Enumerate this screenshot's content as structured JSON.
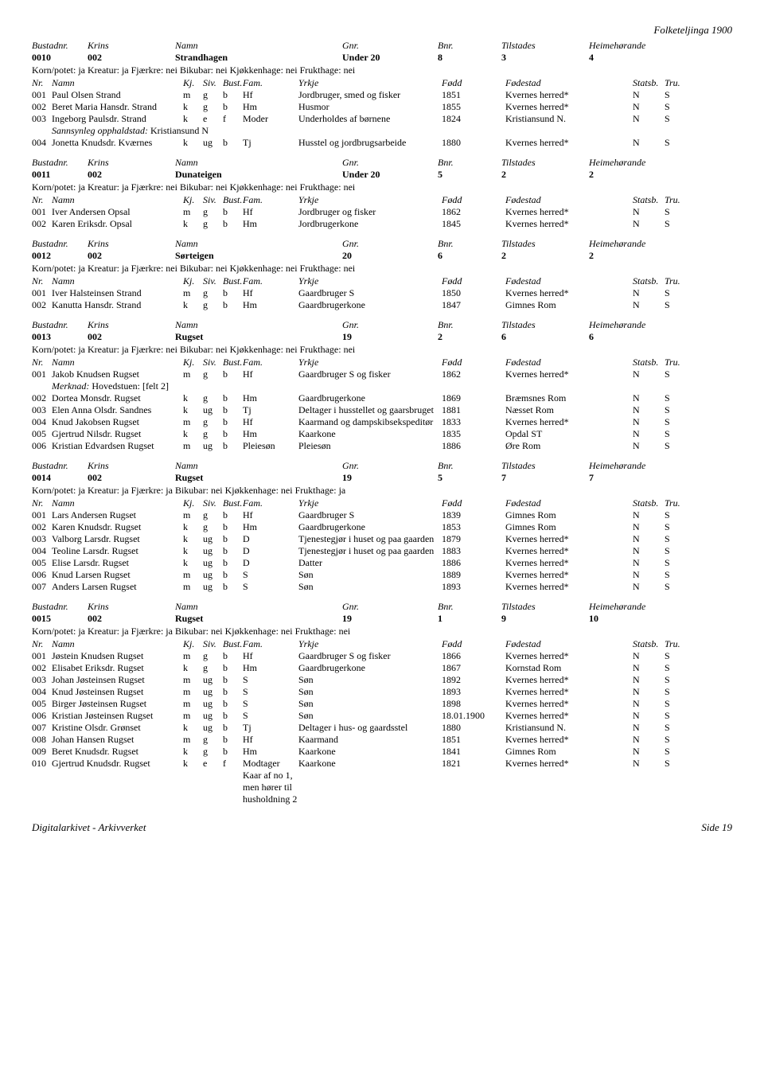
{
  "page_title": "Folketeljinga 1900",
  "footer_left": "Digitalarkivet - Arkivverket",
  "footer_right": "Side 19",
  "labels": {
    "bustnr": "Bustadnr.",
    "krins": "Krins",
    "namn": "Namn",
    "gnr": "Gnr.",
    "bnr": "Bnr.",
    "tilstades": "Tilstades",
    "heim": "Heimehørande",
    "nr": "Nr.",
    "pnamn": "Namn",
    "kj": "Kj.",
    "siv": "Siv.",
    "bust": "Bust.",
    "fam": "Fam.",
    "yrkje": "Yrkje",
    "fodd": "Fødd",
    "fodestad": "Fødestad",
    "statsb": "Statsb.",
    "tru": "Tru.",
    "merknad": "Merknad:",
    "sann": "Sannsynleg opphaldstad:"
  },
  "households": [
    {
      "bustnr": "0010",
      "krins": "002",
      "namn": "Strandhagen",
      "gnr": "Under 20",
      "bnr": "8",
      "tilstades": "3",
      "heim": "4",
      "korn": "Korn/potet: ja Kreatur: ja Fjærkre: nei Bikubar: nei Kjøkkenhage: nei Frukthage: nei",
      "persons": [
        {
          "nr": "001",
          "namn": "Paul Olsen Strand",
          "kj": "m",
          "siv": "g",
          "bust": "b",
          "fam": "Hf",
          "yrkje": "Jordbruger, smed og fisker",
          "fodd": "1851",
          "fodestad": "Kvernes herred*",
          "statsb": "N",
          "tru": "S"
        },
        {
          "nr": "002",
          "namn": "Beret Maria Hansdr. Strand",
          "kj": "k",
          "siv": "g",
          "bust": "b",
          "fam": "Hm",
          "yrkje": "Husmor",
          "fodd": "1855",
          "fodestad": "Kvernes herred*",
          "statsb": "N",
          "tru": "S"
        },
        {
          "nr": "003",
          "namn": "Ingeborg Paulsdr. Strand",
          "kj": "k",
          "siv": "e",
          "bust": "f",
          "fam": "Moder",
          "yrkje": "Underholdes af børnene",
          "fodd": "1824",
          "fodestad": "Kristiansund N.",
          "statsb": "N",
          "tru": "S",
          "sann": "Kristiansund N"
        },
        {
          "nr": "004",
          "namn": "Jonetta Knudsdr. Kværnes",
          "kj": "k",
          "siv": "ug",
          "bust": "b",
          "fam": "Tj",
          "yrkje": "Husstel og jordbrugsarbeide",
          "fodd": "1880",
          "fodestad": "Kvernes herred*",
          "statsb": "N",
          "tru": "S"
        }
      ]
    },
    {
      "bustnr": "0011",
      "krins": "002",
      "namn": "Dunateigen",
      "gnr": "Under 20",
      "bnr": "5",
      "tilstades": "2",
      "heim": "2",
      "korn": "Korn/potet: ja Kreatur: ja Fjærkre: nei Bikubar: nei Kjøkkenhage: nei Frukthage: nei",
      "persons": [
        {
          "nr": "001",
          "namn": "Iver Andersen Opsal",
          "kj": "m",
          "siv": "g",
          "bust": "b",
          "fam": "Hf",
          "yrkje": "Jordbruger og fisker",
          "fodd": "1862",
          "fodestad": "Kvernes herred*",
          "statsb": "N",
          "tru": "S"
        },
        {
          "nr": "002",
          "namn": "Karen Eriksdr. Opsal",
          "kj": "k",
          "siv": "g",
          "bust": "b",
          "fam": "Hm",
          "yrkje": "Jordbrugerkone",
          "fodd": "1845",
          "fodestad": "Kvernes herred*",
          "statsb": "N",
          "tru": "S"
        }
      ]
    },
    {
      "bustnr": "0012",
      "krins": "002",
      "namn": "Sørteigen",
      "gnr": "20",
      "bnr": "6",
      "tilstades": "2",
      "heim": "2",
      "korn": "Korn/potet: ja Kreatur: ja Fjærkre: nei Bikubar: nei Kjøkkenhage: nei Frukthage: nei",
      "persons": [
        {
          "nr": "001",
          "namn": "Iver Halsteinsen Strand",
          "kj": "m",
          "siv": "g",
          "bust": "b",
          "fam": "Hf",
          "yrkje": "Gaardbruger S",
          "fodd": "1850",
          "fodestad": "Kvernes herred*",
          "statsb": "N",
          "tru": "S"
        },
        {
          "nr": "002",
          "namn": "Kanutta Hansdr. Strand",
          "kj": "k",
          "siv": "g",
          "bust": "b",
          "fam": "Hm",
          "yrkje": "Gaardbrugerkone",
          "fodd": "1847",
          "fodestad": "Gimnes Rom",
          "statsb": "N",
          "tru": "S"
        }
      ]
    },
    {
      "bustnr": "0013",
      "krins": "002",
      "namn": "Rugset",
      "gnr": "19",
      "bnr": "2",
      "tilstades": "6",
      "heim": "6",
      "korn": "Korn/potet: ja Kreatur: ja Fjærkre: nei Bikubar: nei Kjøkkenhage: nei Frukthage: nei",
      "persons": [
        {
          "nr": "001",
          "namn": "Jakob Knudsen Rugset",
          "kj": "m",
          "siv": "g",
          "bust": "b",
          "fam": "Hf",
          "yrkje": "Gaardbruger S og fisker",
          "fodd": "1862",
          "fodestad": "Kvernes herred*",
          "statsb": "N",
          "tru": "S",
          "merknad": "Hovedstuen: [felt 2]"
        },
        {
          "nr": "002",
          "namn": "Dortea Monsdr. Rugset",
          "kj": "k",
          "siv": "g",
          "bust": "b",
          "fam": "Hm",
          "yrkje": "Gaardbrugerkone",
          "fodd": "1869",
          "fodestad": "Bræmsnes Rom",
          "statsb": "N",
          "tru": "S"
        },
        {
          "nr": "003",
          "namn": "Elen Anna Olsdr. Sandnes",
          "kj": "k",
          "siv": "ug",
          "bust": "b",
          "fam": "Tj",
          "yrkje": "Deltager i husstellet og gaarsbruget",
          "fodd": "1881",
          "fodestad": "Næsset Rom",
          "statsb": "N",
          "tru": "S"
        },
        {
          "nr": "004",
          "namn": "Knud Jakobsen Rugset",
          "kj": "m",
          "siv": "g",
          "bust": "b",
          "fam": "Hf",
          "yrkje": "Kaarmand og dampskibsekspeditør",
          "fodd": "1833",
          "fodestad": "Kvernes herred*",
          "statsb": "N",
          "tru": "S"
        },
        {
          "nr": "005",
          "namn": "Gjertrud Nilsdr. Rugset",
          "kj": "k",
          "siv": "g",
          "bust": "b",
          "fam": "Hm",
          "yrkje": "Kaarkone",
          "fodd": "1835",
          "fodestad": "Opdal ST",
          "statsb": "N",
          "tru": "S"
        },
        {
          "nr": "006",
          "namn": "Kristian Edvardsen Rugset",
          "kj": "m",
          "siv": "ug",
          "bust": "b",
          "fam": "Pleiesøn",
          "yrkje": "Pleiesøn",
          "fodd": "1886",
          "fodestad": "Øre Rom",
          "statsb": "N",
          "tru": "S"
        }
      ]
    },
    {
      "bustnr": "0014",
      "krins": "002",
      "namn": "Rugset",
      "gnr": "19",
      "bnr": "5",
      "tilstades": "7",
      "heim": "7",
      "korn": "Korn/potet: ja Kreatur: ja Fjærkre: ja Bikubar: nei Kjøkkenhage: nei Frukthage: ja",
      "persons": [
        {
          "nr": "001",
          "namn": "Lars Andersen Rugset",
          "kj": "m",
          "siv": "g",
          "bust": "b",
          "fam": "Hf",
          "yrkje": "Gaardbruger S",
          "fodd": "1839",
          "fodestad": "Gimnes Rom",
          "statsb": "N",
          "tru": "S"
        },
        {
          "nr": "002",
          "namn": "Karen Knudsdr. Rugset",
          "kj": "k",
          "siv": "g",
          "bust": "b",
          "fam": "Hm",
          "yrkje": "Gaardbrugerkone",
          "fodd": "1853",
          "fodestad": "Gimnes Rom",
          "statsb": "N",
          "tru": "S"
        },
        {
          "nr": "003",
          "namn": "Valborg Larsdr. Rugset",
          "kj": "k",
          "siv": "ug",
          "bust": "b",
          "fam": "D",
          "yrkje": "Tjenestegjør i huset og paa gaarden",
          "fodd": "1879",
          "fodestad": "Kvernes herred*",
          "statsb": "N",
          "tru": "S"
        },
        {
          "nr": "004",
          "namn": "Teoline Larsdr. Rugset",
          "kj": "k",
          "siv": "ug",
          "bust": "b",
          "fam": "D",
          "yrkje": "Tjenestegjør i huset og paa gaarden",
          "fodd": "1883",
          "fodestad": "Kvernes herred*",
          "statsb": "N",
          "tru": "S"
        },
        {
          "nr": "005",
          "namn": "Elise Larsdr. Rugset",
          "kj": "k",
          "siv": "ug",
          "bust": "b",
          "fam": "D",
          "yrkje": "Datter",
          "fodd": "1886",
          "fodestad": "Kvernes herred*",
          "statsb": "N",
          "tru": "S"
        },
        {
          "nr": "006",
          "namn": "Knud Larsen Rugset",
          "kj": "m",
          "siv": "ug",
          "bust": "b",
          "fam": "S",
          "yrkje": "Søn",
          "fodd": "1889",
          "fodestad": "Kvernes herred*",
          "statsb": "N",
          "tru": "S"
        },
        {
          "nr": "007",
          "namn": "Anders Larsen Rugset",
          "kj": "m",
          "siv": "ug",
          "bust": "b",
          "fam": "S",
          "yrkje": "Søn",
          "fodd": "1893",
          "fodestad": "Kvernes herred*",
          "statsb": "N",
          "tru": "S"
        }
      ]
    },
    {
      "bustnr": "0015",
      "krins": "002",
      "namn": "Rugset",
      "gnr": "19",
      "bnr": "1",
      "tilstades": "9",
      "heim": "10",
      "korn": "Korn/potet: ja Kreatur: ja Fjærkre: ja Bikubar: nei Kjøkkenhage: nei Frukthage: nei",
      "persons": [
        {
          "nr": "001",
          "namn": "Jøstein Knudsen Rugset",
          "kj": "m",
          "siv": "g",
          "bust": "b",
          "fam": "Hf",
          "yrkje": "Gaardbruger S og fisker",
          "fodd": "1866",
          "fodestad": "Kvernes herred*",
          "statsb": "N",
          "tru": "S"
        },
        {
          "nr": "002",
          "namn": "Elisabet Eriksdr. Rugset",
          "kj": "k",
          "siv": "g",
          "bust": "b",
          "fam": "Hm",
          "yrkje": "Gaardbrugerkone",
          "fodd": "1867",
          "fodestad": "Kornstad Rom",
          "statsb": "N",
          "tru": "S"
        },
        {
          "nr": "003",
          "namn": "Johan Jøsteinsen Rugset",
          "kj": "m",
          "siv": "ug",
          "bust": "b",
          "fam": "S",
          "yrkje": "Søn",
          "fodd": "1892",
          "fodestad": "Kvernes herred*",
          "statsb": "N",
          "tru": "S"
        },
        {
          "nr": "004",
          "namn": "Knud Jøsteinsen Rugset",
          "kj": "m",
          "siv": "ug",
          "bust": "b",
          "fam": "S",
          "yrkje": "Søn",
          "fodd": "1893",
          "fodestad": "Kvernes herred*",
          "statsb": "N",
          "tru": "S"
        },
        {
          "nr": "005",
          "namn": "Birger Jøsteinsen Rugset",
          "kj": "m",
          "siv": "ug",
          "bust": "b",
          "fam": "S",
          "yrkje": "Søn",
          "fodd": "1898",
          "fodestad": "Kvernes herred*",
          "statsb": "N",
          "tru": "S"
        },
        {
          "nr": "006",
          "namn": "Kristian Jøsteinsen Rugset",
          "kj": "m",
          "siv": "ug",
          "bust": "b",
          "fam": "S",
          "yrkje": "Søn",
          "fodd": "18.01.1900",
          "fodestad": "Kvernes herred*",
          "statsb": "N",
          "tru": "S"
        },
        {
          "nr": "007",
          "namn": "Kristine Olsdr. Grønset",
          "kj": "k",
          "siv": "ug",
          "bust": "b",
          "fam": "Tj",
          "yrkje": "Deltager i hus- og gaardsstel",
          "fodd": "1880",
          "fodestad": "Kristiansund N.",
          "statsb": "N",
          "tru": "S"
        },
        {
          "nr": "008",
          "namn": "Johan Hansen Rugset",
          "kj": "m",
          "siv": "g",
          "bust": "b",
          "fam": "Hf",
          "yrkje": "Kaarmand",
          "fodd": "1851",
          "fodestad": "Kvernes herred*",
          "statsb": "N",
          "tru": "S"
        },
        {
          "nr": "009",
          "namn": "Beret Knudsdr. Rugset",
          "kj": "k",
          "siv": "g",
          "bust": "b",
          "fam": "Hm",
          "yrkje": "Kaarkone",
          "fodd": "1841",
          "fodestad": "Gimnes Rom",
          "statsb": "N",
          "tru": "S"
        },
        {
          "nr": "010",
          "namn": "Gjertrud Knudsdr. Rugset",
          "kj": "k",
          "siv": "e",
          "bust": "f",
          "fam": "Modtager Kaar af no 1, men hører til husholdning 2",
          "yrkje": "Kaarkone",
          "fodd": "1821",
          "fodestad": "Kvernes herred*",
          "statsb": "N",
          "tru": "S"
        }
      ]
    }
  ]
}
